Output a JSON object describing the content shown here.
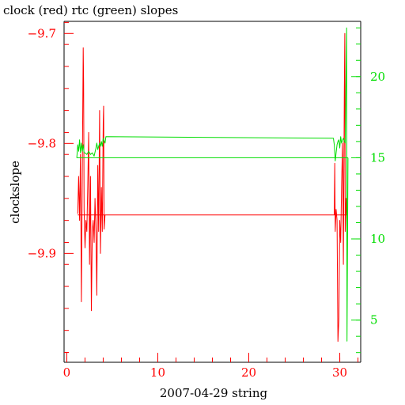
{
  "chart_data": {
    "type": "line",
    "title": "clock (red) rtc (green) slopes",
    "xlabel": "2007-04-29 string",
    "ylabel": "clockslope",
    "xlim": [
      -0.3,
      32.3
    ],
    "x_ticks": [
      0,
      10,
      20,
      30
    ],
    "ylim_left": [
      -9.999,
      -9.689
    ],
    "y_ticks_left": [
      -9.9,
      -9.8,
      -9.7
    ],
    "ylim_right": [
      2.4,
      23.4
    ],
    "y_ticks_right": [
      5,
      10,
      15,
      20
    ],
    "grid": false,
    "colors": {
      "clock": "#ff0000",
      "rtc": "#00dd00",
      "axis": "#000000"
    },
    "series": [
      {
        "axis": "left",
        "color": "#ff0000",
        "points": [
          [
            1.2,
            -9.864
          ],
          [
            1.3,
            -9.83
          ],
          [
            1.4,
            -9.87
          ],
          [
            1.5,
            -9.81
          ],
          [
            1.6,
            -9.944
          ],
          [
            1.7,
            -9.83
          ],
          [
            1.8,
            -9.713
          ],
          [
            1.85,
            -9.745
          ],
          [
            1.9,
            -9.86
          ],
          [
            2.0,
            -9.895
          ],
          [
            2.1,
            -9.87
          ],
          [
            2.2,
            -9.88
          ],
          [
            2.3,
            -9.84
          ],
          [
            2.4,
            -9.79
          ],
          [
            2.5,
            -9.91
          ],
          [
            2.6,
            -9.83
          ],
          [
            2.7,
            -9.952
          ],
          [
            2.8,
            -9.88
          ],
          [
            2.9,
            -9.87
          ],
          [
            3.0,
            -9.89
          ],
          [
            3.1,
            -9.85
          ],
          [
            3.2,
            -9.88
          ],
          [
            3.3,
            -9.938
          ],
          [
            3.4,
            -9.82
          ],
          [
            3.5,
            -9.88
          ],
          [
            3.6,
            -9.77
          ],
          [
            3.7,
            -9.9
          ],
          [
            3.8,
            -9.84
          ],
          [
            3.9,
            -9.88
          ],
          [
            4.0,
            -9.78
          ],
          [
            4.05,
            -9.766
          ],
          [
            4.1,
            -9.878
          ],
          [
            4.2,
            -9.865
          ],
          [
            30.0,
            -9.865
          ],
          [
            29.4,
            -9.865
          ],
          [
            29.45,
            -9.818
          ],
          [
            29.5,
            -9.88
          ],
          [
            29.6,
            -9.86
          ],
          [
            29.7,
            -9.87
          ],
          [
            29.8,
            -9.98
          ],
          [
            29.9,
            -9.96
          ],
          [
            30.0,
            -9.87
          ],
          [
            30.1,
            -9.89
          ],
          [
            30.2,
            -9.84
          ],
          [
            30.3,
            -9.8
          ],
          [
            30.4,
            -9.91
          ],
          [
            30.5,
            -9.752
          ],
          [
            30.55,
            -9.7
          ],
          [
            30.6,
            -9.88
          ],
          [
            30.7,
            -9.85
          ],
          [
            30.75,
            -9.865
          ],
          [
            1.2,
            -9.865
          ]
        ]
      },
      {
        "axis": "right",
        "color": "#00dd00",
        "points": [
          [
            30.9,
            15.0
          ],
          [
            1.1,
            15.0
          ],
          [
            1.2,
            15.8
          ],
          [
            1.3,
            15.4
          ],
          [
            1.4,
            16.1
          ],
          [
            1.5,
            15.3
          ],
          [
            1.6,
            15.9
          ],
          [
            1.7,
            15.4
          ],
          [
            1.8,
            15.8
          ],
          [
            1.9,
            15.3
          ],
          [
            2.0,
            15.3
          ],
          [
            2.2,
            15.2
          ],
          [
            2.4,
            15.4
          ],
          [
            2.6,
            15.2
          ],
          [
            2.8,
            15.3
          ],
          [
            3.0,
            15.1
          ],
          [
            3.2,
            15.6
          ],
          [
            3.3,
            15.9
          ],
          [
            3.4,
            15.5
          ],
          [
            3.6,
            15.9
          ],
          [
            3.7,
            15.7
          ],
          [
            3.8,
            16.0
          ],
          [
            3.9,
            15.7
          ],
          [
            4.0,
            16.2
          ],
          [
            4.2,
            15.9
          ],
          [
            4.3,
            16.3
          ],
          [
            29.3,
            16.2
          ],
          [
            29.4,
            15.8
          ],
          [
            29.5,
            14.8
          ],
          [
            29.6,
            15.3
          ],
          [
            29.7,
            15.8
          ],
          [
            29.8,
            16.0
          ],
          [
            29.9,
            16.1
          ],
          [
            30.0,
            15.6
          ],
          [
            30.1,
            16.3
          ],
          [
            30.2,
            15.9
          ],
          [
            30.4,
            16.2
          ],
          [
            30.6,
            15.9
          ],
          [
            30.75,
            23.0
          ],
          [
            30.8,
            3.7
          ],
          [
            30.9,
            15.0
          ]
        ]
      }
    ]
  }
}
